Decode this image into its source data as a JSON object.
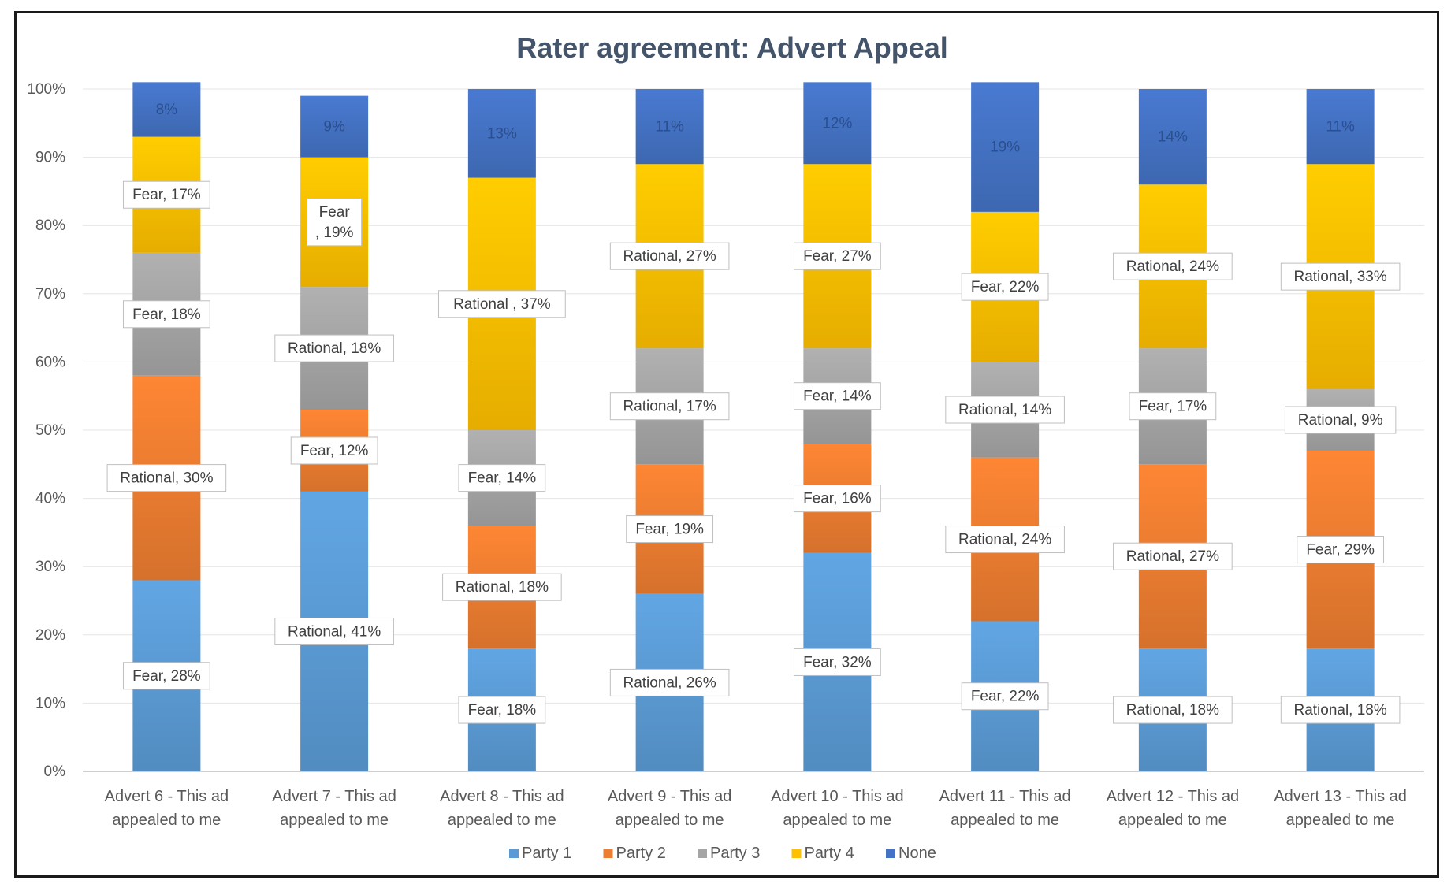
{
  "chart_data": {
    "type": "bar",
    "stacked": true,
    "percent": true,
    "title": "Rater agreement: Advert Appeal",
    "xlabel": "",
    "ylabel": "",
    "ylim": [
      0,
      100
    ],
    "yticks": [
      "0%",
      "10%",
      "20%",
      "30%",
      "40%",
      "50%",
      "60%",
      "70%",
      "80%",
      "90%",
      "100%"
    ],
    "grid": true,
    "legend_position": "bottom",
    "categories": [
      [
        "Advert 6 - This ad",
        "appealed to me"
      ],
      [
        "Advert 7 - This ad",
        "appealed to me"
      ],
      [
        "Advert 8 - This ad",
        "appealed to me"
      ],
      [
        "Advert 9 - This ad",
        "appealed to me"
      ],
      [
        "Advert 10 - This ad",
        "appealed to me"
      ],
      [
        "Advert 11 - This ad",
        "appealed to me"
      ],
      [
        "Advert 12 - This ad",
        "appealed to me"
      ],
      [
        "Advert 13 - This ad",
        "appealed to me"
      ]
    ],
    "series": [
      {
        "name": "Party 1",
        "color": "#5b9bd5",
        "values": [
          28,
          41,
          18,
          26,
          32,
          22,
          18,
          18
        ],
        "labels": [
          [
            "Fear, 28%"
          ],
          [
            "Rational, 41%"
          ],
          [
            "Fear, 18%"
          ],
          [
            "Rational, 26%"
          ],
          [
            "Fear, 32%"
          ],
          [
            "Fear, 22%"
          ],
          [
            "Rational, 18%"
          ],
          [
            "Rational, 18%"
          ]
        ]
      },
      {
        "name": "Party 2",
        "color": "#ed7d31",
        "values": [
          30,
          12,
          18,
          19,
          16,
          24,
          27,
          29
        ],
        "labels": [
          [
            "Rational, 30%"
          ],
          [
            "Fear, 12%"
          ],
          [
            "Rational, 18%"
          ],
          [
            "Fear, 19%"
          ],
          [
            "Fear, 16%"
          ],
          [
            "Rational, 24%"
          ],
          [
            "Rational, 27%"
          ],
          [
            "Fear, 29%"
          ]
        ]
      },
      {
        "name": "Party 3",
        "color": "#a5a5a5",
        "values": [
          18,
          18,
          14,
          17,
          14,
          14,
          17,
          9
        ],
        "labels": [
          [
            "Fear, 18%"
          ],
          [
            "Rational, 18%"
          ],
          [
            "Fear, 14%"
          ],
          [
            "Rational, 17%"
          ],
          [
            "Fear, 14%"
          ],
          [
            "Rational, 14%"
          ],
          [
            "Fear, 17%"
          ],
          [
            "Rational, 9%"
          ]
        ]
      },
      {
        "name": "Party 4",
        "color": "#ffc000",
        "values": [
          17,
          19,
          37,
          27,
          27,
          22,
          24,
          33
        ],
        "labels": [
          [
            "Fear, 17%"
          ],
          [
            "Fear",
            ", 19%"
          ],
          [
            "Rational , 37%"
          ],
          [
            "Rational, 27%"
          ],
          [
            "Fear, 27%"
          ],
          [
            "Fear, 22%"
          ],
          [
            "Rational, 24%"
          ],
          [
            "Rational, 33%"
          ]
        ]
      },
      {
        "name": "None",
        "color": "#4472c4",
        "values": [
          8,
          9,
          13,
          11,
          12,
          19,
          14,
          11
        ],
        "labels": [
          [
            "8%"
          ],
          [
            "9%"
          ],
          [
            "13%"
          ],
          [
            "11%"
          ],
          [
            "12%"
          ],
          [
            "19%"
          ],
          [
            "14%"
          ],
          [
            "11%"
          ]
        ]
      }
    ]
  }
}
